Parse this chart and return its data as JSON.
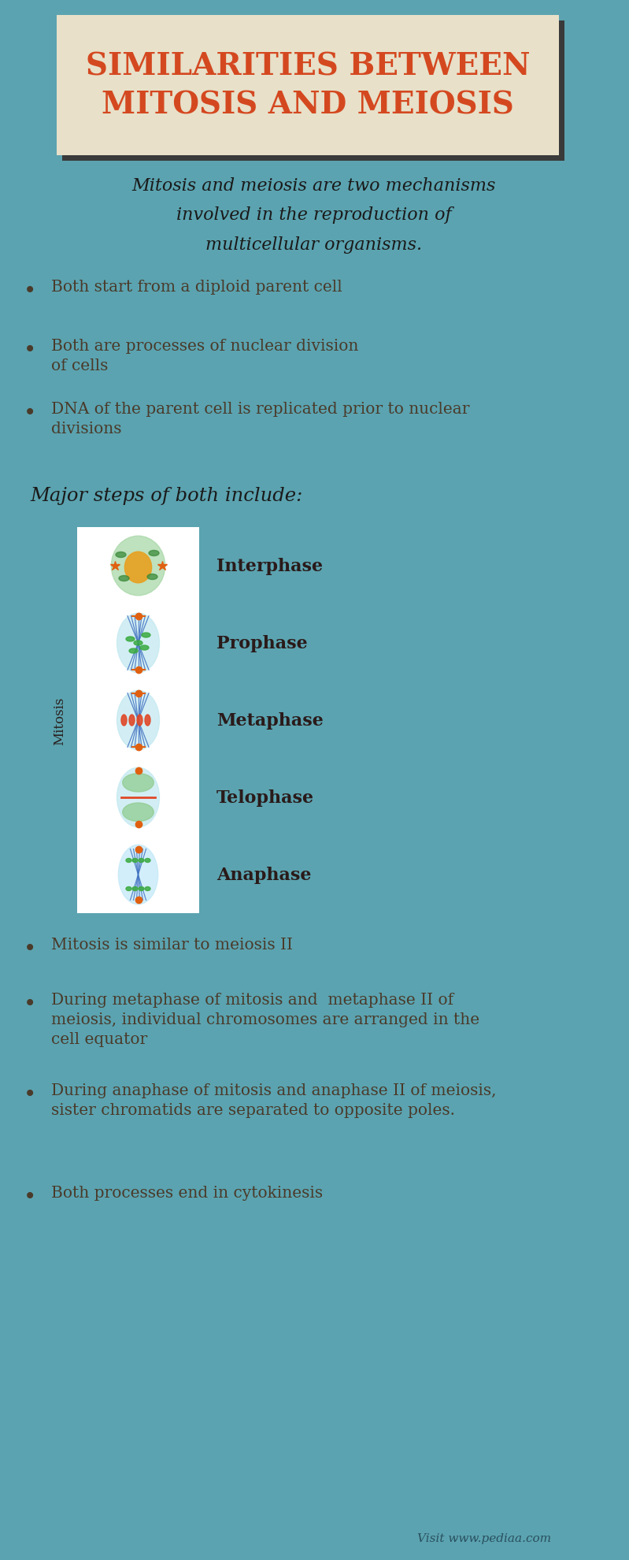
{
  "bg_color": "#5ba3b0",
  "title_box_color": "#e8e0c8",
  "title_shadow_color": "#3a3a3a",
  "title_text": "SIMILARITIES BETWEEN\nMITOSIS AND MEIOSIS",
  "title_color": "#d44820",
  "intro_text": "Mitosis and meiosis are two mechanisms\ninvolved in the reproduction of\nmulticellular organisms.",
  "intro_color": "#1a1a1a",
  "bullet_color": "#4a3a2a",
  "bullet_dot_color": "#4a3a2a",
  "bullets": [
    "Both start from a diploid parent cell",
    "Both are processes of nuclear division\nof cells",
    "DNA of the parent cell is replicated prior to nuclear\ndivisions"
  ],
  "major_steps_text": "Major steps of both include:",
  "major_steps_color": "#1a1a1a",
  "phases": [
    "Interphase",
    "Prophase",
    "Metaphase",
    "Telophase",
    "Anaphase"
  ],
  "phase_color": "#2a1a1a",
  "mitosis_label": "Mitosis",
  "mitosis_label_color": "#2a2020",
  "bottom_bullets": [
    "Mitosis is similar to meiosis II",
    "During metaphase of mitosis and  metaphase II of\nmeiosis, individual chromosomes are arranged in the\ncell equator",
    "During anaphase of mitosis and anaphase II of meiosis,\nsister chromatids are separated to opposite poles.",
    "Both processes end in cytokinesis"
  ],
  "watermark": "Visit www.pediaa.com",
  "watermark_color": "#2a5060"
}
